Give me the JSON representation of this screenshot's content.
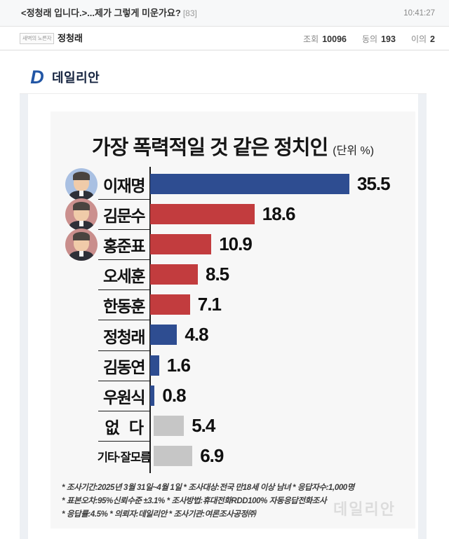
{
  "header": {
    "title": "<정청래 입니다.>...제가 그렇게 미운가요?",
    "comment_count": "[83]",
    "time": "10:41:27"
  },
  "post_info": {
    "badge": "새벽의 노른자",
    "author": "정청래",
    "stats": [
      {
        "label": "조회",
        "value": "10096"
      },
      {
        "label": "동의",
        "value": "193"
      },
      {
        "label": "이의",
        "value": "2"
      }
    ]
  },
  "publisher": {
    "logo_mark": "D",
    "logo_text": "데일리안"
  },
  "chart_data": {
    "type": "bar",
    "orientation": "horizontal",
    "title": "가장 폭력적일 것 같은 정치인",
    "unit_label": "(단위 %)",
    "xlim": [
      0,
      40
    ],
    "grid": false,
    "legend": "none",
    "categories": [
      "이재명",
      "김문수",
      "홍준표",
      "오세훈",
      "한동훈",
      "정청래",
      "김동연",
      "우원식",
      "없다",
      "기타·잘모름"
    ],
    "values": [
      35.5,
      18.6,
      10.9,
      8.5,
      7.1,
      4.8,
      1.6,
      0.8,
      5.4,
      6.9
    ],
    "colors": {
      "democratic_blue": "#2e4d91",
      "ppp_red": "#c23c3e",
      "neutral_gray": "#c6c6c6"
    },
    "items": [
      {
        "label": "이재명",
        "value": "35.5",
        "color": "#2e4d91",
        "avatar": true,
        "avatar_bg": "#a9c0e2"
      },
      {
        "label": "김문수",
        "value": "18.6",
        "color": "#c23c3e",
        "avatar": true,
        "avatar_bg": "#cb908e"
      },
      {
        "label": "홍준표",
        "value": "10.9",
        "color": "#c23c3e",
        "avatar": true,
        "avatar_bg": "#c98e8c"
      },
      {
        "label": "오세훈",
        "value": "8.5",
        "color": "#c23c3e"
      },
      {
        "label": "한동훈",
        "value": "7.1",
        "color": "#c23c3e"
      },
      {
        "label": "정청래",
        "value": "4.8",
        "color": "#2e4d91"
      },
      {
        "label": "김동연",
        "value": "1.6",
        "color": "#2e4d91"
      },
      {
        "label": "우원식",
        "value": "0.8",
        "color": "#2e4d91"
      },
      {
        "label": "없   다",
        "value": "5.4",
        "color": "#c6c6c6",
        "offset": true
      },
      {
        "label": "기타·잘모름",
        "value": "6.9",
        "color": "#c6c6c6",
        "offset": true,
        "small": true
      }
    ],
    "footnotes": [
      "* 조사기간:2025년 3월 31일~4월 1일  * 조사대상:전국 만18세 이상 남녀  * 응답자수:1,000명",
      "* 표본오차:95%신뢰수준 ±3.1%  * 조사방법:휴대전화RDD100% 자동응답전화조사",
      "* 응답률:4.5%  * 의뢰자:데일리안  * 조사기관:여론조사공정㈜"
    ],
    "watermark": "데일리안"
  }
}
